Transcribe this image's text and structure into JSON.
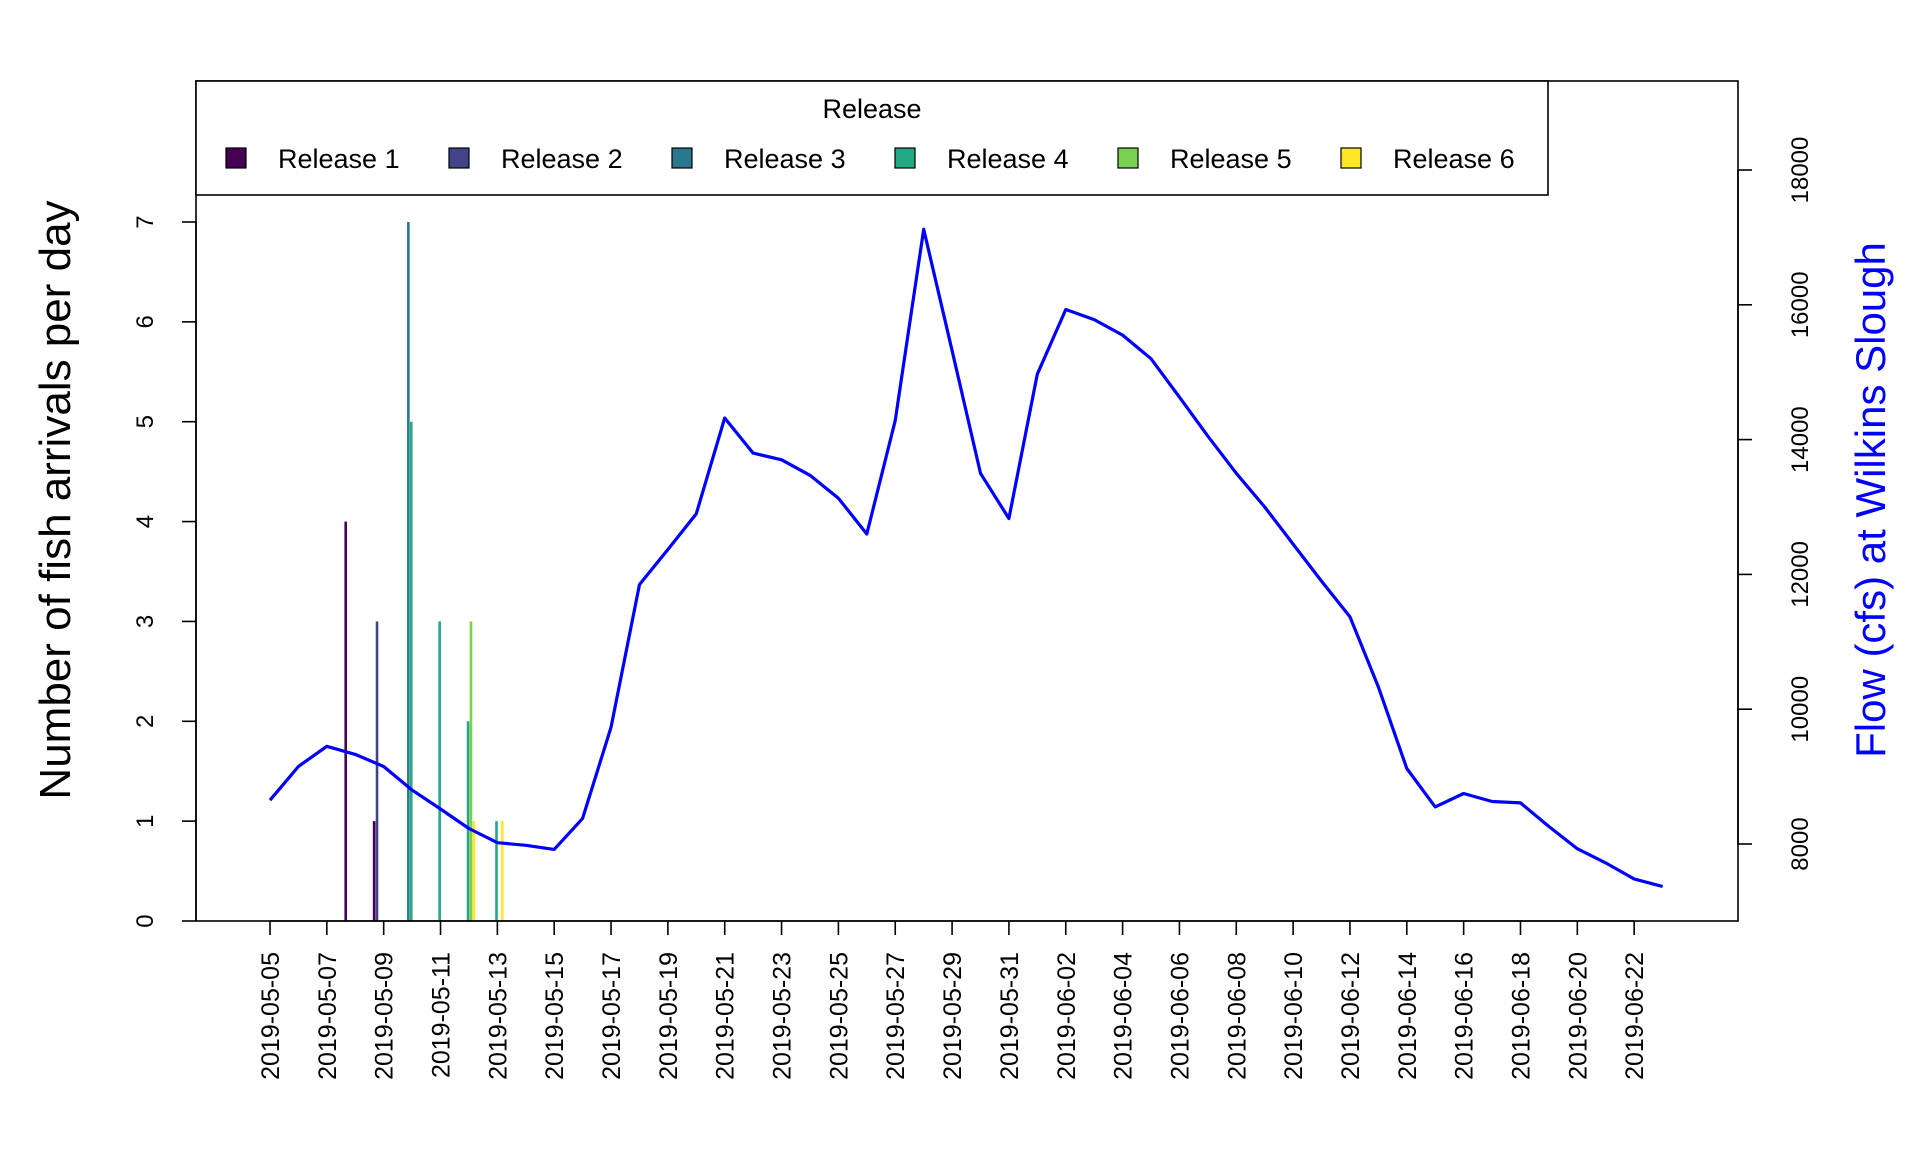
{
  "chart_data": {
    "type": "bar",
    "y_left": {
      "label": "Number of fish arrivals per day",
      "lim": [
        0,
        7
      ],
      "ticks": [
        0,
        1,
        2,
        3,
        4,
        5,
        6,
        7
      ]
    },
    "y_right": {
      "label": "Flow (cfs) at Wilkins Slough",
      "lim": [
        7200,
        18000
      ],
      "ticks": [
        8000,
        10000,
        12000,
        14000,
        16000,
        18000
      ],
      "ticks_text": [
        "8000",
        "10000",
        "12000",
        "14000",
        "16000",
        "18000"
      ]
    },
    "x_ticks": [
      "2019-05-05",
      "2019-05-07",
      "2019-05-09",
      "2019-05-11",
      "2019-05-13",
      "2019-05-15",
      "2019-05-17",
      "2019-05-19",
      "2019-05-21",
      "2019-05-23",
      "2019-05-25",
      "2019-05-27",
      "2019-05-29",
      "2019-05-31",
      "2019-06-02",
      "2019-06-04",
      "2019-06-06",
      "2019-06-08",
      "2019-06-10",
      "2019-06-12",
      "2019-06-14",
      "2019-06-16",
      "2019-06-18",
      "2019-06-20",
      "2019-06-22"
    ],
    "legend": {
      "title": "Release",
      "position": "top"
    },
    "series": [
      {
        "name": "Release 1",
        "color": "#440154",
        "bars": [
          {
            "date": "2019-05-08",
            "value": 4
          },
          {
            "date": "2019-05-09",
            "value": 1
          }
        ]
      },
      {
        "name": "Release 2",
        "color": "#414487",
        "bars": [
          {
            "date": "2019-05-09",
            "value": 3
          }
        ]
      },
      {
        "name": "Release 3",
        "color": "#2A788E",
        "bars": [
          {
            "date": "2019-05-10",
            "value": 7
          }
        ]
      },
      {
        "name": "Release 4",
        "color": "#22A884",
        "bars": [
          {
            "date": "2019-05-10",
            "value": 5
          },
          {
            "date": "2019-05-11",
            "value": 3
          },
          {
            "date": "2019-05-12",
            "value": 2
          },
          {
            "date": "2019-05-13",
            "value": 1
          }
        ]
      },
      {
        "name": "Release 5",
        "color": "#7AD151",
        "bars": [
          {
            "date": "2019-05-12",
            "value": 3
          }
        ]
      },
      {
        "name": "Release 6",
        "color": "#FDE725",
        "bars": [
          {
            "date": "2019-05-12",
            "value": 1
          },
          {
            "date": "2019-05-13",
            "value": 1
          }
        ]
      }
    ],
    "flow": {
      "color": "#0000FF",
      "points": [
        [
          "2019-05-05",
          8650
        ],
        [
          "2019-05-06",
          9150
        ],
        [
          "2019-05-07",
          9450
        ],
        [
          "2019-05-08",
          9330
        ],
        [
          "2019-05-09",
          9150
        ],
        [
          "2019-05-10",
          8800
        ],
        [
          "2019-05-11",
          8520
        ],
        [
          "2019-05-12",
          8230
        ],
        [
          "2019-05-13",
          8020
        ],
        [
          "2019-05-14",
          7980
        ],
        [
          "2019-05-15",
          7920
        ],
        [
          "2019-05-16",
          8380
        ],
        [
          "2019-05-17",
          9730
        ],
        [
          "2019-05-18",
          11850
        ],
        [
          "2019-05-19",
          12370
        ],
        [
          "2019-05-20",
          12900
        ],
        [
          "2019-05-21",
          14320
        ],
        [
          "2019-05-22",
          13800
        ],
        [
          "2019-05-23",
          13700
        ],
        [
          "2019-05-24",
          13470
        ],
        [
          "2019-05-25",
          13130
        ],
        [
          "2019-05-26",
          12600
        ],
        [
          "2019-05-27",
          14280
        ],
        [
          "2019-05-28",
          17120
        ],
        [
          "2019-05-29",
          15320
        ],
        [
          "2019-05-30",
          13500
        ],
        [
          "2019-05-31",
          12830
        ],
        [
          "2019-06-01",
          14970
        ],
        [
          "2019-06-02",
          15930
        ],
        [
          "2019-06-03",
          15780
        ],
        [
          "2019-06-04",
          15550
        ],
        [
          "2019-06-05",
          15200
        ],
        [
          "2019-06-06",
          14630
        ],
        [
          "2019-06-07",
          14050
        ],
        [
          "2019-06-08",
          13500
        ],
        [
          "2019-06-09",
          13000
        ],
        [
          "2019-06-10",
          12450
        ],
        [
          "2019-06-11",
          11900
        ],
        [
          "2019-06-12",
          11370
        ],
        [
          "2019-06-13",
          10330
        ],
        [
          "2019-06-14",
          9120
        ],
        [
          "2019-06-15",
          8550
        ],
        [
          "2019-06-16",
          8750
        ],
        [
          "2019-06-17",
          8630
        ],
        [
          "2019-06-18",
          8610
        ],
        [
          "2019-06-19",
          8260
        ],
        [
          "2019-06-20",
          7930
        ],
        [
          "2019-06-21",
          7720
        ],
        [
          "2019-06-22",
          7480
        ],
        [
          "2019-06-23",
          7370
        ]
      ]
    }
  }
}
